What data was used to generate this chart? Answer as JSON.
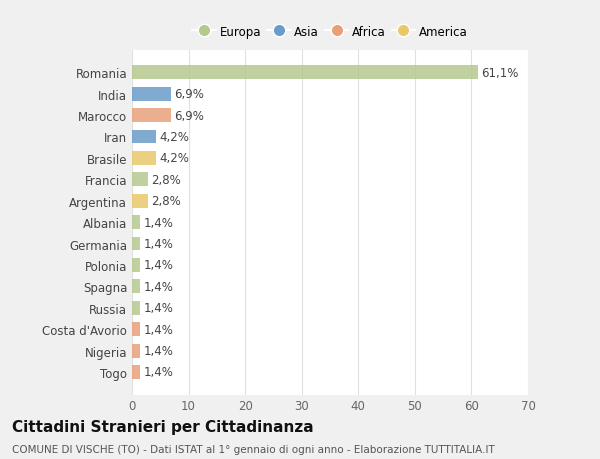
{
  "countries": [
    "Romania",
    "India",
    "Marocco",
    "Iran",
    "Brasile",
    "Francia",
    "Argentina",
    "Albania",
    "Germania",
    "Polonia",
    "Spagna",
    "Russia",
    "Costa d'Avorio",
    "Nigeria",
    "Togo"
  ],
  "values": [
    61.1,
    6.9,
    6.9,
    4.2,
    4.2,
    2.8,
    2.8,
    1.4,
    1.4,
    1.4,
    1.4,
    1.4,
    1.4,
    1.4,
    1.4
  ],
  "labels": [
    "61,1%",
    "6,9%",
    "6,9%",
    "4,2%",
    "4,2%",
    "2,8%",
    "2,8%",
    "1,4%",
    "1,4%",
    "1,4%",
    "1,4%",
    "1,4%",
    "1,4%",
    "1,4%",
    "1,4%"
  ],
  "colors": [
    "#b5c98e",
    "#6b9bc8",
    "#e8a07a",
    "#6b9bc8",
    "#e8c86b",
    "#b5c98e",
    "#e8c86b",
    "#b5c98e",
    "#b5c98e",
    "#b5c98e",
    "#b5c98e",
    "#b5c98e",
    "#e8a07a",
    "#e8a07a",
    "#e8a07a"
  ],
  "continent_colors": {
    "Europa": "#b5c98e",
    "Asia": "#6b9bc8",
    "Africa": "#e8a07a",
    "America": "#e8c86b"
  },
  "xlim": [
    0,
    70
  ],
  "xticks": [
    0,
    10,
    20,
    30,
    40,
    50,
    60,
    70
  ],
  "title": "Cittadini Stranieri per Cittadinanza",
  "subtitle": "COMUNE DI VISCHE (TO) - Dati ISTAT al 1° gennaio di ogni anno - Elaborazione TUTTITALIA.IT",
  "outer_bg": "#f0f0f0",
  "plot_bg": "#ffffff",
  "grid_color": "#e0e0e0",
  "label_fontsize": 8.5,
  "tick_fontsize": 8.5,
  "title_fontsize": 11,
  "subtitle_fontsize": 7.5,
  "bar_height": 0.65
}
